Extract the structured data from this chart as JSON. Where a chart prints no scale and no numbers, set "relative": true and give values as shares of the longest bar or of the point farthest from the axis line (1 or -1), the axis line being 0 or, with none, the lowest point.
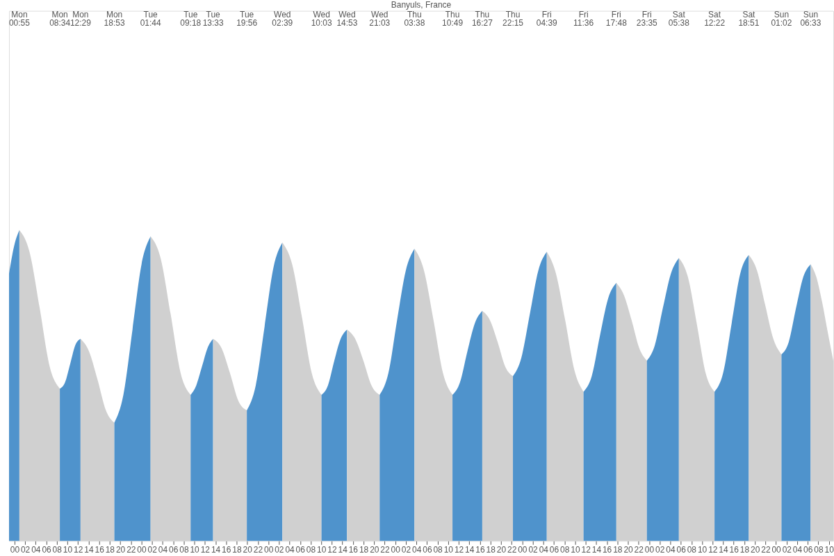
{
  "chart_data": {
    "type": "area",
    "title": "Banyuls, France",
    "relative": true,
    "xlim": [
      -1.04,
      154.83
    ],
    "xticks": [
      {
        "value": 0,
        "label": "00"
      },
      {
        "value": 2,
        "label": "02"
      },
      {
        "value": 4,
        "label": "04"
      },
      {
        "value": 6,
        "label": "06"
      },
      {
        "value": 8,
        "label": "08"
      },
      {
        "value": 10,
        "label": "10"
      },
      {
        "value": 12,
        "label": "12"
      },
      {
        "value": 14,
        "label": "14"
      },
      {
        "value": 16,
        "label": "16"
      },
      {
        "value": 18,
        "label": "18"
      },
      {
        "value": 20,
        "label": "20"
      },
      {
        "value": 22,
        "label": "22"
      },
      {
        "value": 24,
        "label": "00"
      },
      {
        "value": 26,
        "label": "02"
      },
      {
        "value": 28,
        "label": "04"
      },
      {
        "value": 30,
        "label": "06"
      },
      {
        "value": 32,
        "label": "08"
      },
      {
        "value": 34,
        "label": "10"
      },
      {
        "value": 36,
        "label": "12"
      },
      {
        "value": 38,
        "label": "14"
      },
      {
        "value": 40,
        "label": "16"
      },
      {
        "value": 42,
        "label": "18"
      },
      {
        "value": 44,
        "label": "20"
      },
      {
        "value": 46,
        "label": "22"
      },
      {
        "value": 48,
        "label": "00"
      },
      {
        "value": 50,
        "label": "02"
      },
      {
        "value": 52,
        "label": "04"
      },
      {
        "value": 54,
        "label": "06"
      },
      {
        "value": 56,
        "label": "08"
      },
      {
        "value": 58,
        "label": "10"
      },
      {
        "value": 60,
        "label": "12"
      },
      {
        "value": 62,
        "label": "14"
      },
      {
        "value": 64,
        "label": "16"
      },
      {
        "value": 66,
        "label": "18"
      },
      {
        "value": 68,
        "label": "20"
      },
      {
        "value": 70,
        "label": "22"
      },
      {
        "value": 72,
        "label": "00"
      },
      {
        "value": 74,
        "label": "02"
      },
      {
        "value": 76,
        "label": "04"
      },
      {
        "value": 78,
        "label": "06"
      },
      {
        "value": 80,
        "label": "08"
      },
      {
        "value": 82,
        "label": "10"
      },
      {
        "value": 84,
        "label": "12"
      },
      {
        "value": 86,
        "label": "14"
      },
      {
        "value": 88,
        "label": "16"
      },
      {
        "value": 90,
        "label": "18"
      },
      {
        "value": 92,
        "label": "20"
      },
      {
        "value": 94,
        "label": "22"
      },
      {
        "value": 96,
        "label": "00"
      },
      {
        "value": 98,
        "label": "02"
      },
      {
        "value": 100,
        "label": "04"
      },
      {
        "value": 102,
        "label": "06"
      },
      {
        "value": 104,
        "label": "08"
      },
      {
        "value": 106,
        "label": "10"
      },
      {
        "value": 108,
        "label": "12"
      },
      {
        "value": 110,
        "label": "14"
      },
      {
        "value": 112,
        "label": "16"
      },
      {
        "value": 114,
        "label": "18"
      },
      {
        "value": 116,
        "label": "20"
      },
      {
        "value": 118,
        "label": "22"
      },
      {
        "value": 120,
        "label": "00"
      },
      {
        "value": 122,
        "label": "02"
      },
      {
        "value": 124,
        "label": "04"
      },
      {
        "value": 126,
        "label": "06"
      },
      {
        "value": 128,
        "label": "08"
      },
      {
        "value": 130,
        "label": "10"
      },
      {
        "value": 132,
        "label": "12"
      },
      {
        "value": 134,
        "label": "14"
      },
      {
        "value": 136,
        "label": "16"
      },
      {
        "value": 138,
        "label": "18"
      },
      {
        "value": 140,
        "label": "20"
      },
      {
        "value": 142,
        "label": "22"
      },
      {
        "value": 144,
        "label": "00"
      },
      {
        "value": 146,
        "label": "02"
      },
      {
        "value": 148,
        "label": "04"
      },
      {
        "value": 150,
        "label": "06"
      },
      {
        "value": 152,
        "label": "08"
      },
      {
        "value": 154,
        "label": "10"
      }
    ],
    "series": [
      {
        "color": "#4f93cc",
        "x": [
          -1.04,
          -0.06,
          0.92
        ],
        "values": [
          0.86,
          0.95,
          1.0
        ]
      },
      {
        "color": "#d0d0d0",
        "x": [
          0.92,
          2.83,
          4.75,
          6.66,
          8.57
        ],
        "values": [
          1.0,
          0.93,
          0.75,
          0.56,
          0.49
        ]
      },
      {
        "color": "#4f93cc",
        "x": [
          8.57,
          9.55,
          10.53,
          11.5,
          12.48
        ],
        "values": [
          0.49,
          0.51,
          0.57,
          0.63,
          0.65
        ]
      },
      {
        "color": "#d0d0d0",
        "x": [
          12.48,
          14.08,
          15.68,
          17.28,
          18.88
        ],
        "values": [
          0.65,
          0.61,
          0.52,
          0.42,
          0.38
        ]
      },
      {
        "color": "#4f93cc",
        "x": [
          18.88,
          20.59,
          22.31,
          24.02,
          25.73
        ],
        "values": [
          0.38,
          0.47,
          0.68,
          0.89,
          0.98
        ]
      },
      {
        "color": "#d0d0d0",
        "x": [
          25.73,
          27.62,
          29.52,
          31.41,
          33.3
        ],
        "values": [
          0.98,
          0.91,
          0.73,
          0.54,
          0.47
        ]
      },
      {
        "color": "#4f93cc",
        "x": [
          33.3,
          34.36,
          35.43,
          36.49,
          37.55
        ],
        "values": [
          0.47,
          0.5,
          0.56,
          0.62,
          0.65
        ]
      },
      {
        "color": "#d0d0d0",
        "x": [
          37.55,
          39.15,
          40.74,
          42.34,
          43.93
        ],
        "values": [
          0.65,
          0.62,
          0.54,
          0.45,
          0.42
        ]
      },
      {
        "color": "#4f93cc",
        "x": [
          43.93,
          45.61,
          47.29,
          48.97,
          50.65
        ],
        "values": [
          0.42,
          0.5,
          0.69,
          0.88,
          0.96
        ]
      },
      {
        "color": "#d0d0d0",
        "x": [
          50.65,
          52.5,
          54.35,
          56.2,
          58.05
        ],
        "values": [
          0.96,
          0.89,
          0.72,
          0.54,
          0.47
        ]
      },
      {
        "color": "#4f93cc",
        "x": [
          58.05,
          59.26,
          60.47,
          61.67,
          62.88
        ],
        "values": [
          0.47,
          0.5,
          0.58,
          0.65,
          0.68
        ]
      },
      {
        "color": "#d0d0d0",
        "x": [
          62.88,
          64.42,
          65.97,
          67.51,
          69.05
        ],
        "values": [
          0.68,
          0.65,
          0.58,
          0.5,
          0.47
        ]
      },
      {
        "color": "#4f93cc",
        "x": [
          69.05,
          70.7,
          72.34,
          73.99,
          75.63
        ],
        "values": [
          0.47,
          0.54,
          0.71,
          0.87,
          0.94
        ]
      },
      {
        "color": "#d0d0d0",
        "x": [
          75.63,
          77.43,
          79.23,
          81.02,
          82.82
        ],
        "values": [
          0.94,
          0.87,
          0.71,
          0.54,
          0.47
        ]
      },
      {
        "color": "#4f93cc",
        "x": [
          82.82,
          84.23,
          85.64,
          87.04,
          88.45
        ],
        "values": [
          0.47,
          0.51,
          0.61,
          0.7,
          0.74
        ]
      },
      {
        "color": "#d0d0d0",
        "x": [
          88.45,
          89.9,
          91.35,
          92.8,
          94.25
        ],
        "values": [
          0.74,
          0.71,
          0.64,
          0.56,
          0.53
        ]
      },
      {
        "color": "#4f93cc",
        "x": [
          94.25,
          95.85,
          97.45,
          99.05,
          100.65
        ],
        "values": [
          0.53,
          0.59,
          0.73,
          0.87,
          0.93
        ]
      },
      {
        "color": "#d0d0d0",
        "x": [
          100.65,
          102.39,
          104.13,
          105.86,
          107.6
        ],
        "values": [
          0.93,
          0.86,
          0.71,
          0.55,
          0.48
        ]
      },
      {
        "color": "#4f93cc",
        "x": [
          107.6,
          109.15,
          110.7,
          112.25,
          113.8
        ],
        "values": [
          0.48,
          0.53,
          0.66,
          0.78,
          0.83
        ]
      },
      {
        "color": "#d0d0d0",
        "x": [
          113.8,
          115.25,
          116.69,
          118.14,
          119.58
        ],
        "values": [
          0.83,
          0.79,
          0.71,
          0.62,
          0.58
        ]
      },
      {
        "color": "#4f93cc",
        "x": [
          119.58,
          121.09,
          122.61,
          124.12,
          125.63
        ],
        "values": [
          0.58,
          0.63,
          0.75,
          0.86,
          0.91
        ]
      },
      {
        "color": "#d0d0d0",
        "x": [
          125.63,
          127.32,
          129.0,
          130.69,
          132.37
        ],
        "values": [
          0.91,
          0.85,
          0.7,
          0.54,
          0.48
        ]
      },
      {
        "color": "#4f93cc",
        "x": [
          132.37,
          133.99,
          135.61,
          137.23,
          138.85
        ],
        "values": [
          0.48,
          0.54,
          0.7,
          0.86,
          0.92
        ]
      },
      {
        "color": "#d0d0d0",
        "x": [
          138.85,
          140.4,
          141.94,
          143.49,
          145.03
        ],
        "values": [
          0.92,
          0.87,
          0.76,
          0.65,
          0.6
        ]
      },
      {
        "color": "#4f93cc",
        "x": [
          145.03,
          146.41,
          147.79,
          149.17,
          150.55
        ],
        "values": [
          0.6,
          0.64,
          0.75,
          0.85,
          0.89
        ]
      },
      {
        "color": "#d0d0d0",
        "x": [
          150.55,
          151.6,
          152.7,
          153.8,
          154.83
        ],
        "values": [
          0.89,
          0.85,
          0.77,
          0.67,
          0.58
        ]
      }
    ],
    "annotations": [
      "Mon 00:55",
      "Mon 08:34",
      "Mon 12:29",
      "Mon 18:53",
      "Tue 01:44",
      "Tue 09:18",
      "Tue 13:33",
      "Tue 19:56",
      "Wed 02:39",
      "Wed 10:03",
      "Wed 14:53",
      "Wed 21:03",
      "Thu 03:38",
      "Thu 10:49",
      "Thu 16:27",
      "Thu 22:15",
      "Fri 04:39",
      "Fri 11:36",
      "Fri 17:48",
      "Fri 23:35",
      "Sat 05:38",
      "Sat 12:22",
      "Sat 18:51",
      "Sun 01:02",
      "Sun 06:33"
    ]
  }
}
